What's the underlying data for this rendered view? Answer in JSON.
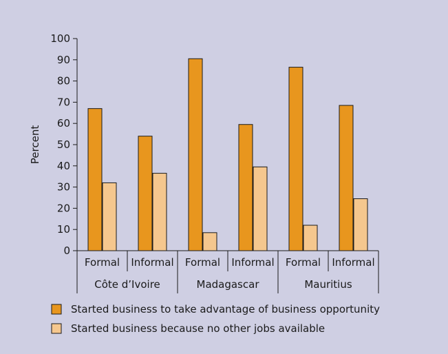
{
  "chart_data": {
    "type": "bar",
    "title": "",
    "xlabel": "",
    "ylabel": "Percent",
    "ylim": [
      0,
      100
    ],
    "yticks": [
      0,
      10,
      20,
      30,
      40,
      50,
      60,
      70,
      80,
      90,
      100
    ],
    "grid": false,
    "legend_position": "bottom",
    "groups": [
      {
        "name": "Côte d’Ivoire",
        "categories": [
          "Formal",
          "Informal"
        ]
      },
      {
        "name": "Madagascar",
        "categories": [
          "Formal",
          "Informal"
        ]
      },
      {
        "name": "Mauritius",
        "categories": [
          "Formal",
          "Informal"
        ]
      }
    ],
    "categories": [
      "Formal",
      "Informal",
      "Formal",
      "Informal",
      "Formal",
      "Informal"
    ],
    "series": [
      {
        "name": "Started business to take advantage of business opportunity",
        "color": "#e8961e",
        "values": [
          67,
          54,
          90.5,
          59.5,
          86.5,
          68.5
        ]
      },
      {
        "name": "Started business because no other jobs available",
        "color": "#f5c78e",
        "values": [
          32,
          36.5,
          8.5,
          39.5,
          12,
          24.5
        ]
      }
    ]
  }
}
